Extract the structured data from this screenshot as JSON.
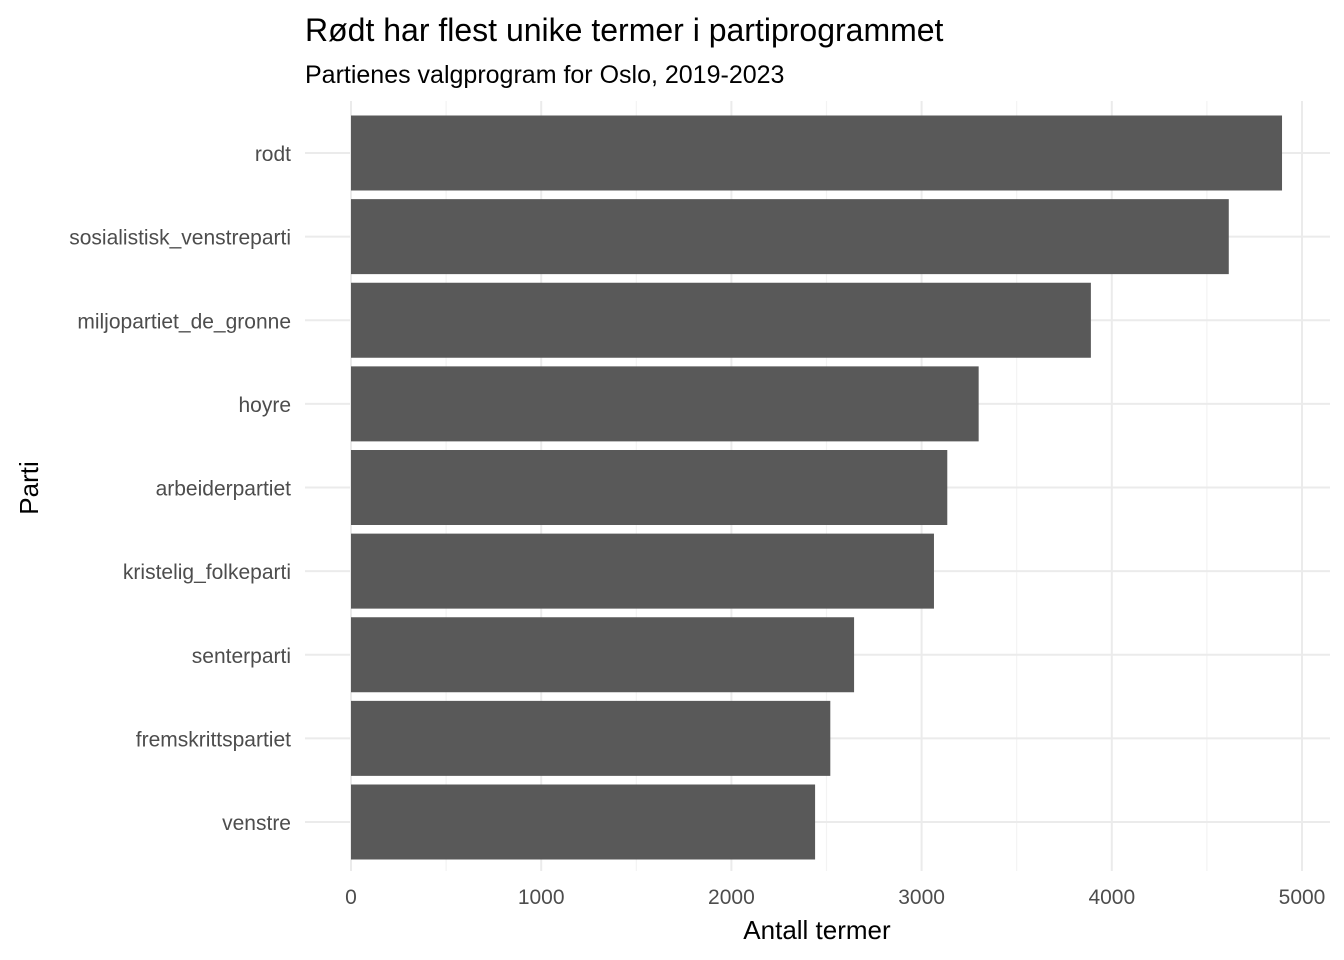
{
  "chart_data": {
    "type": "bar",
    "orientation": "horizontal",
    "title": "Rødt har flest unike termer i partiprogrammet",
    "subtitle": "Partienes valgprogram for Oslo, 2019-2023",
    "xlabel": "Antall termer",
    "ylabel": "Parti",
    "categories": [
      "rodt",
      "sosialistisk_venstreparti",
      "miljopartiet_de_gronne",
      "hoyre",
      "arbeiderpartiet",
      "kristelig_folkeparti",
      "senterparti",
      "fremskrittspartiet",
      "venstre"
    ],
    "values": [
      4895,
      4615,
      3890,
      3300,
      3135,
      3065,
      2645,
      2520,
      2440
    ],
    "xlim": [
      0,
      5150
    ],
    "x_ticks": [
      0,
      1000,
      2000,
      3000,
      4000,
      5000
    ],
    "x_tick_labels": [
      "0",
      "1000",
      "2000",
      "3000",
      "4000",
      "5000"
    ],
    "grid": true,
    "bar_color": "#595959",
    "background": "#ffffff"
  }
}
